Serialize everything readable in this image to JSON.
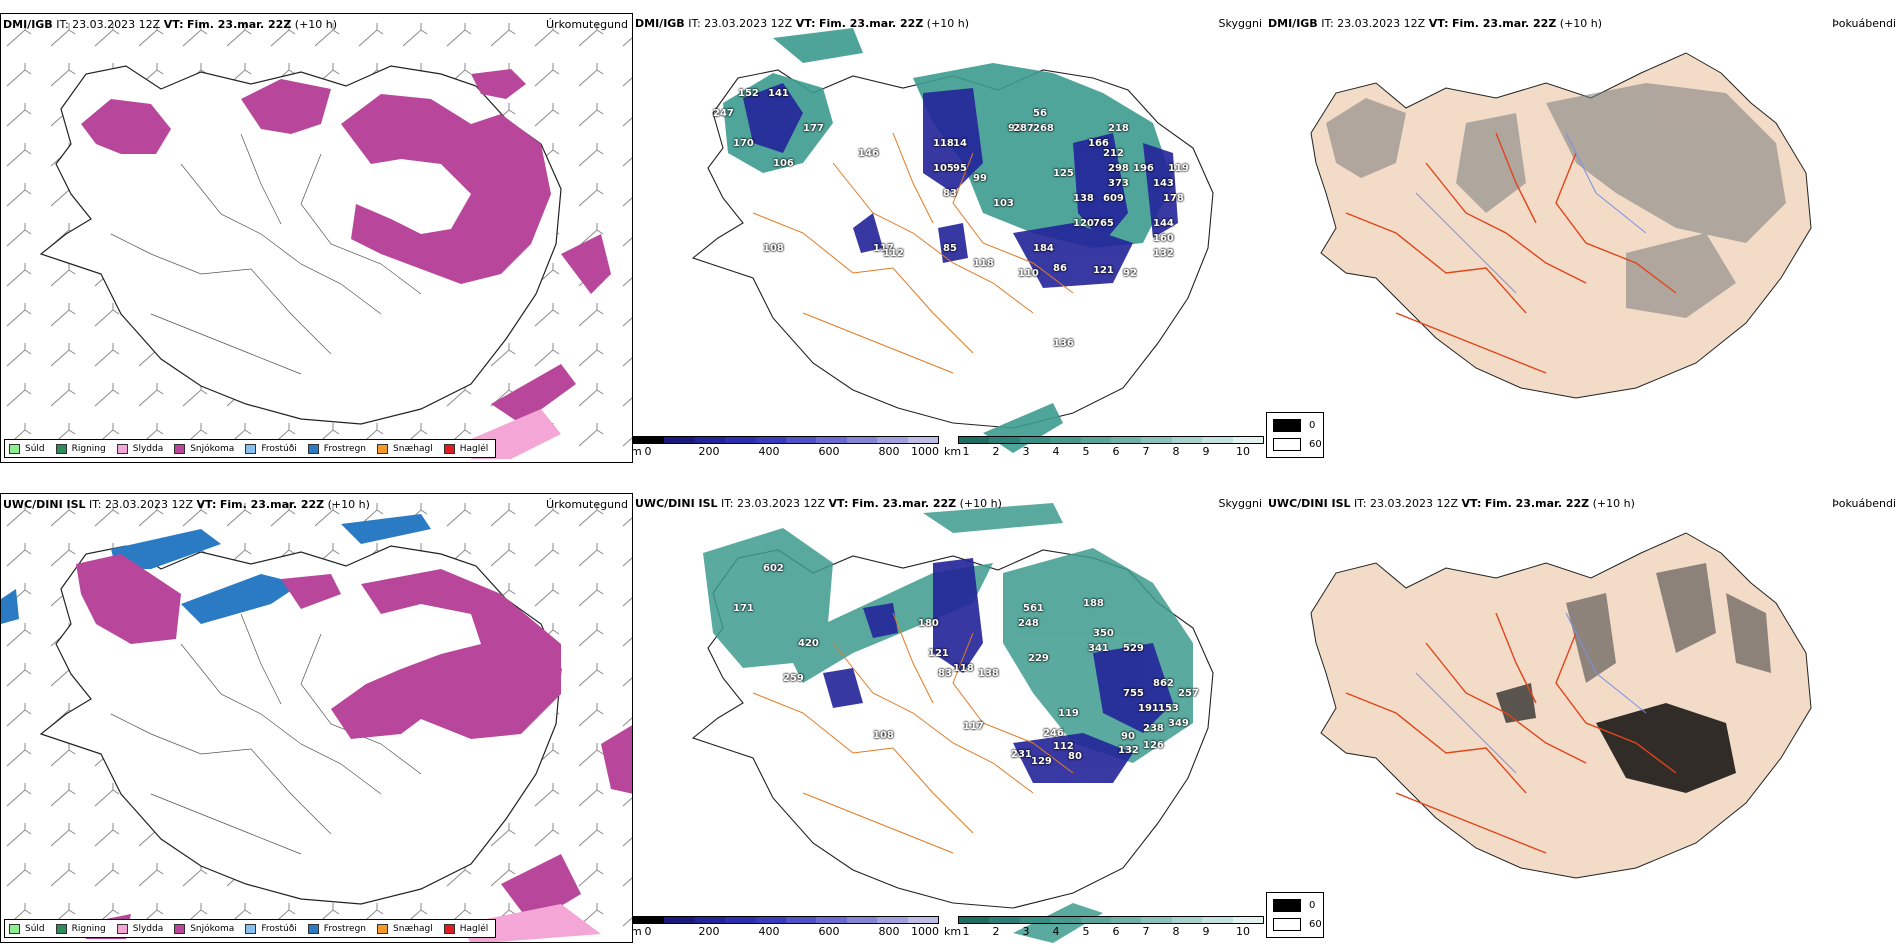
{
  "rows": [
    {
      "model": "DMI/IGB",
      "it_label": "IT:",
      "it_value": "23.03.2023 12Z",
      "vt_label": "VT:",
      "vt_value": "Fim. 23.mar. 22Z",
      "lead": "(+10 h)"
    },
    {
      "model": "UWC/DINI ISL",
      "it_label": "IT:",
      "it_value": "23.03.2023 12Z",
      "vt_label": "VT:",
      "vt_value": "Fim. 23.mar. 22Z",
      "lead": "(+10 h)"
    }
  ],
  "panels": {
    "precip_type": {
      "variable": "Úrkomutegund"
    },
    "cloud_ceiling": {
      "variable": "Skyggni"
    },
    "fog": {
      "variable": "Þokuábendi"
    }
  },
  "precip_legend": [
    {
      "label": "Súld",
      "color": "#90ee90"
    },
    {
      "label": "Rigning",
      "color": "#2e8b57"
    },
    {
      "label": "Slydda",
      "color": "#f4a6d7"
    },
    {
      "label": "Snjókoma",
      "color": "#b8479c"
    },
    {
      "label": "Frostúði",
      "color": "#87bff0"
    },
    {
      "label": "Frostregn",
      "color": "#2b7bc4"
    },
    {
      "label": "Snæhagl",
      "color": "#f29a25"
    },
    {
      "label": "Haglél",
      "color": "#e01b1b"
    }
  ],
  "height_bar": {
    "unit": "m",
    "ticks": [
      "0",
      "200",
      "400",
      "600",
      "800",
      "1000"
    ],
    "colors": [
      "#000000",
      "#1a1a7a",
      "#23239a",
      "#2d2db0",
      "#3b3bc0",
      "#5252c8",
      "#6a6ad0",
      "#8585d8",
      "#a0a0e0",
      "#bdbde8"
    ]
  },
  "visibility_bar": {
    "unit": "km",
    "ticks": [
      "1",
      "2",
      "3",
      "4",
      "5",
      "6",
      "7",
      "8",
      "9",
      "10"
    ],
    "colors": [
      "#1e6e66",
      "#2a7f76",
      "#358f85",
      "#45998f",
      "#58a59c",
      "#6fb2aa",
      "#8ac2bb",
      "#a6d2cd",
      "#c4e2df",
      "#e4f2f0"
    ]
  },
  "fog_legend": [
    {
      "label": "0",
      "color": "#000000"
    },
    {
      "label": "60",
      "color": "#ffffff"
    }
  ],
  "ceiling_labels_top": [
    "152",
    "141",
    "247",
    "170",
    "177",
    "106",
    "146",
    "118",
    "14",
    "95",
    "105",
    "95",
    "83",
    "99",
    "103",
    "117",
    "112",
    "85",
    "118",
    "110",
    "86",
    "121",
    "92",
    "120",
    "184",
    "125",
    "138",
    "298",
    "373",
    "609",
    "196",
    "143",
    "119",
    "178",
    "144",
    "160",
    "132",
    "212",
    "218",
    "166",
    "287",
    "268",
    "56",
    "765",
    "136",
    "108"
  ],
  "ceiling_labels_bottom": [
    "602",
    "171",
    "420",
    "259",
    "180",
    "121",
    "83",
    "118",
    "138",
    "561",
    "248",
    "188",
    "350",
    "341",
    "529",
    "229",
    "862",
    "755",
    "257",
    "119",
    "191",
    "153",
    "349",
    "238",
    "90",
    "132",
    "126",
    "246",
    "231",
    "112",
    "80",
    "129",
    "117",
    "108"
  ]
}
